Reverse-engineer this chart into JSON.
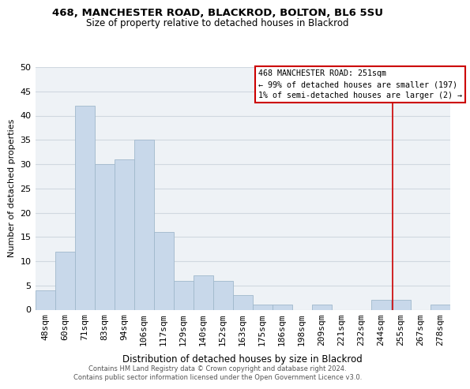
{
  "title": "468, MANCHESTER ROAD, BLACKROD, BOLTON, BL6 5SU",
  "subtitle": "Size of property relative to detached houses in Blackrod",
  "xlabel": "Distribution of detached houses by size in Blackrod",
  "ylabel": "Number of detached properties",
  "bar_labels": [
    "48sqm",
    "60sqm",
    "71sqm",
    "83sqm",
    "94sqm",
    "106sqm",
    "117sqm",
    "129sqm",
    "140sqm",
    "152sqm",
    "163sqm",
    "175sqm",
    "186sqm",
    "198sqm",
    "209sqm",
    "221sqm",
    "232sqm",
    "244sqm",
    "255sqm",
    "267sqm",
    "278sqm"
  ],
  "bar_values": [
    4,
    12,
    42,
    30,
    31,
    35,
    16,
    6,
    7,
    6,
    3,
    1,
    1,
    0,
    1,
    0,
    0,
    2,
    2,
    0,
    1
  ],
  "bar_color": "#c8d8ea",
  "bar_edge_color": "#a0b8cc",
  "grid_color": "#d0d8e0",
  "background_color": "#eef2f6",
  "ylim": [
    0,
    50
  ],
  "yticks": [
    0,
    5,
    10,
    15,
    20,
    25,
    30,
    35,
    40,
    45,
    50
  ],
  "marker_line_color": "#cc0000",
  "annotation_title": "468 MANCHESTER ROAD: 251sqm",
  "annotation_line1": "← 99% of detached houses are smaller (197)",
  "annotation_line2": "1% of semi-detached houses are larger (2) →",
  "annotation_box_color": "#ffffff",
  "annotation_box_edge": "#cc0000",
  "footer1": "Contains HM Land Registry data © Crown copyright and database right 2024.",
  "footer2": "Contains public sector information licensed under the Open Government Licence v3.0."
}
